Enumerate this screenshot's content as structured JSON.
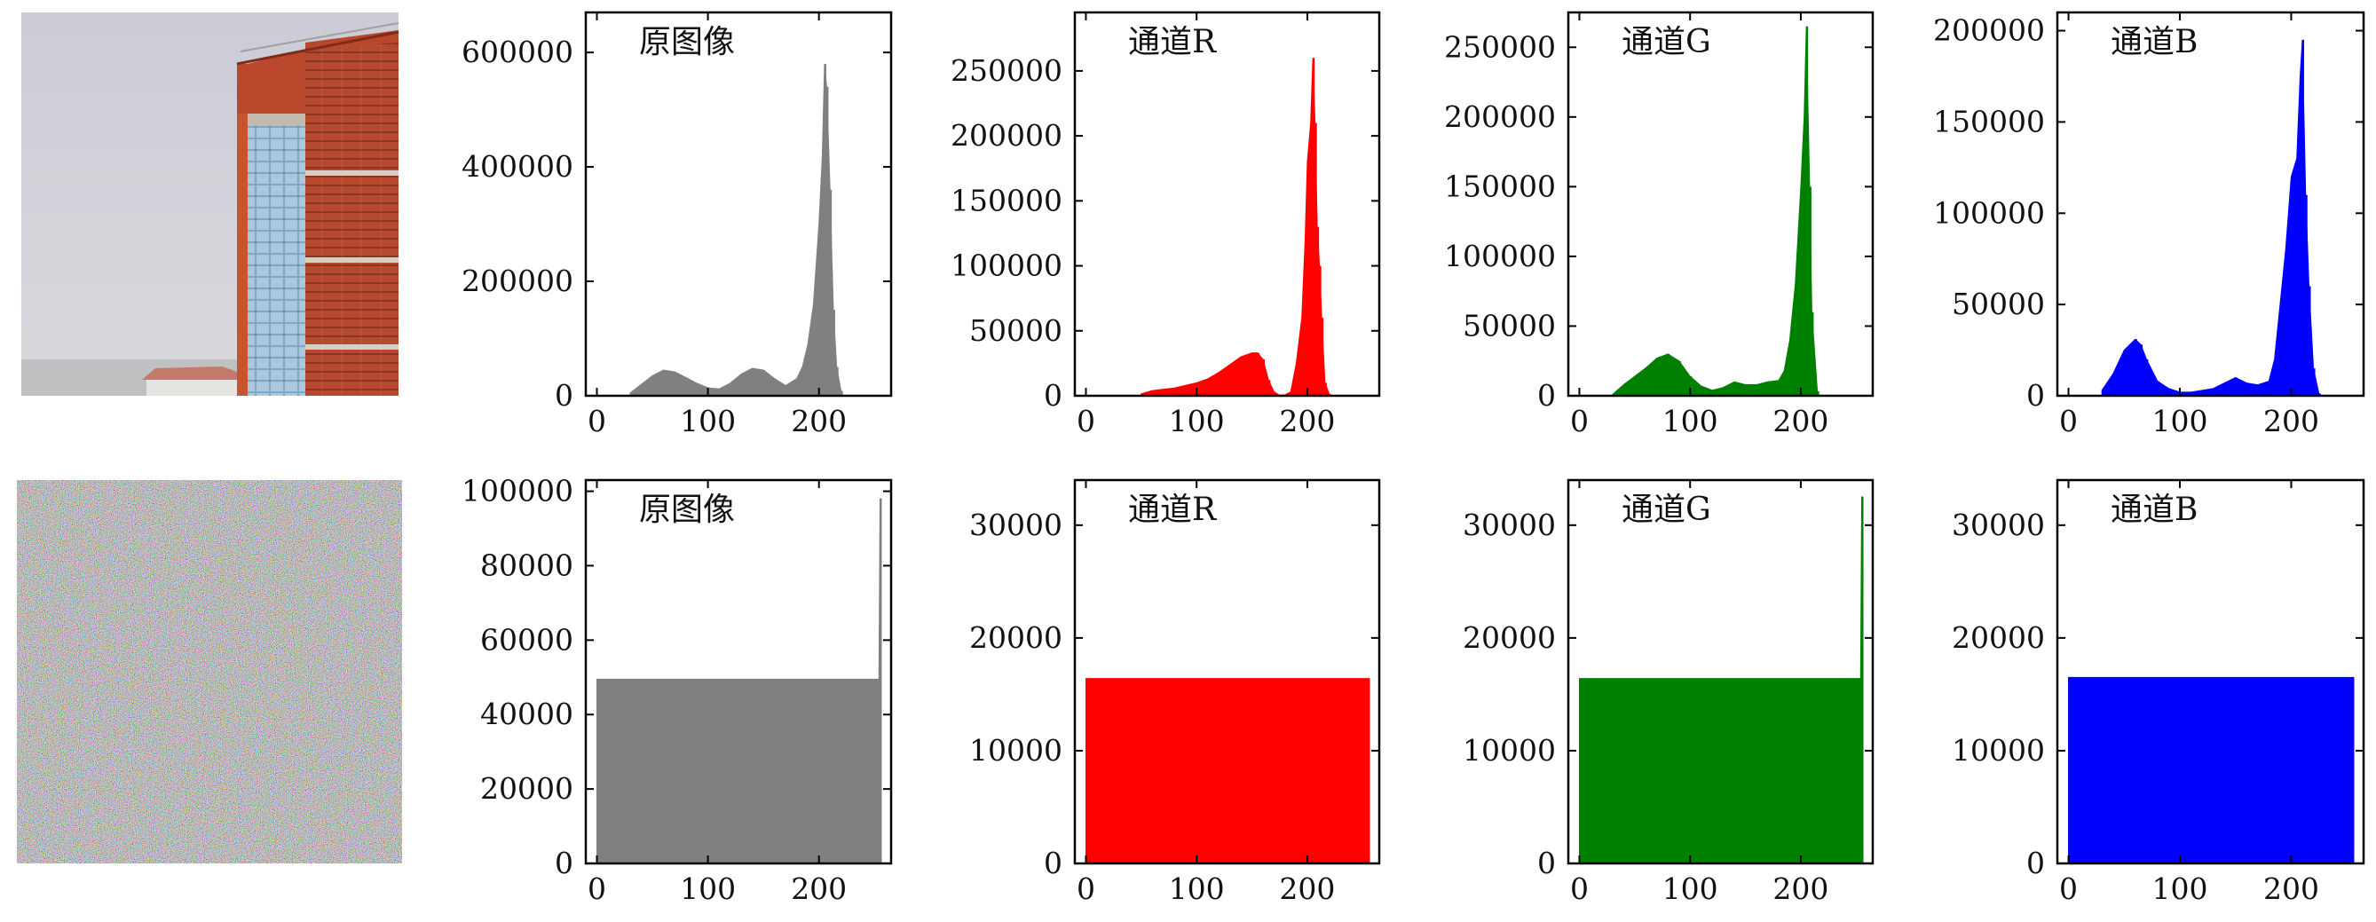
{
  "chart_data": [
    {
      "type": "bar",
      "row": 0,
      "col": 1,
      "title": "原图像",
      "color": "#808080",
      "xlim": [
        -10,
        265
      ],
      "ylim": [
        0,
        670000
      ],
      "xticks": [
        0,
        100,
        200
      ],
      "yticks": [
        0,
        200000,
        400000,
        600000
      ],
      "x": [
        30,
        40,
        50,
        60,
        70,
        80,
        90,
        100,
        110,
        120,
        130,
        140,
        150,
        160,
        170,
        180,
        185,
        190,
        195,
        200,
        203,
        205,
        207,
        210,
        213,
        216,
        220
      ],
      "values": [
        5000,
        20000,
        35000,
        45000,
        42000,
        32000,
        22000,
        14000,
        12000,
        22000,
        38000,
        48000,
        45000,
        30000,
        18000,
        30000,
        50000,
        90000,
        160000,
        300000,
        420000,
        580000,
        540000,
        360000,
        150000,
        50000,
        8000
      ]
    },
    {
      "type": "bar",
      "row": 0,
      "col": 2,
      "title": "通道R",
      "color": "#ff0000",
      "xlim": [
        -10,
        265
      ],
      "ylim": [
        0,
        295000
      ],
      "xticks": [
        0,
        100,
        200
      ],
      "yticks": [
        0,
        50000,
        100000,
        150000,
        200000,
        250000
      ],
      "x": [
        50,
        60,
        70,
        80,
        90,
        100,
        110,
        120,
        130,
        140,
        150,
        155,
        160,
        165,
        170,
        175,
        180,
        185,
        190,
        195,
        198,
        200,
        203,
        205,
        207,
        209,
        211,
        213,
        216,
        220
      ],
      "values": [
        1500,
        4000,
        5000,
        6000,
        8000,
        10000,
        13000,
        18000,
        24000,
        30000,
        33000,
        33000,
        28000,
        12000,
        3000,
        500,
        800,
        3000,
        25000,
        60000,
        120000,
        180000,
        210000,
        260000,
        210000,
        130000,
        100000,
        60000,
        10000,
        1000
      ]
    },
    {
      "type": "bar",
      "row": 0,
      "col": 3,
      "title": "通道G",
      "color": "#008000",
      "xlim": [
        -10,
        265
      ],
      "ylim": [
        0,
        275000
      ],
      "xticks": [
        0,
        100,
        200
      ],
      "yticks": [
        0,
        50000,
        100000,
        150000,
        200000,
        250000
      ],
      "x": [
        30,
        40,
        50,
        60,
        70,
        80,
        90,
        100,
        110,
        120,
        130,
        140,
        150,
        160,
        170,
        180,
        185,
        190,
        195,
        200,
        203,
        205,
        208,
        210,
        215
      ],
      "values": [
        1000,
        8000,
        14000,
        20000,
        27000,
        30000,
        25000,
        14000,
        7000,
        4000,
        6000,
        10000,
        8000,
        8000,
        10000,
        11000,
        18000,
        40000,
        80000,
        150000,
        200000,
        265000,
        150000,
        60000,
        3000
      ]
    },
    {
      "type": "bar",
      "row": 0,
      "col": 4,
      "title": "通道B",
      "color": "#0000ff",
      "xlim": [
        -10,
        265
      ],
      "ylim": [
        0,
        210000
      ],
      "xticks": [
        0,
        100,
        200
      ],
      "yticks": [
        0,
        50000,
        100000,
        150000,
        200000
      ],
      "x": [
        30,
        40,
        50,
        60,
        65,
        70,
        80,
        90,
        100,
        110,
        120,
        130,
        140,
        150,
        160,
        170,
        180,
        185,
        190,
        195,
        200,
        205,
        208,
        210,
        213,
        216,
        220,
        225
      ],
      "values": [
        3000,
        12000,
        25000,
        31000,
        28000,
        20000,
        8000,
        4000,
        2000,
        2000,
        3000,
        4000,
        7000,
        10000,
        7000,
        6000,
        8000,
        20000,
        50000,
        80000,
        120000,
        130000,
        175000,
        195000,
        110000,
        60000,
        15000,
        1000
      ]
    },
    {
      "type": "bar",
      "row": 1,
      "col": 1,
      "title": "原图像",
      "color": "#808080",
      "xlim": [
        -10,
        265
      ],
      "ylim": [
        0,
        103000
      ],
      "xticks": [
        0,
        100,
        200
      ],
      "yticks": [
        0,
        20000,
        40000,
        60000,
        80000,
        100000
      ],
      "x": [
        0,
        254,
        255
      ],
      "values": [
        49500,
        49500,
        98000
      ]
    },
    {
      "type": "bar",
      "row": 1,
      "col": 2,
      "title": "通道R",
      "color": "#ff0000",
      "xlim": [
        -10,
        265
      ],
      "ylim": [
        0,
        34000
      ],
      "xticks": [
        0,
        100,
        200
      ],
      "yticks": [
        0,
        10000,
        20000,
        30000
      ],
      "x": [
        0,
        255
      ],
      "values": [
        16400,
        16400
      ]
    },
    {
      "type": "bar",
      "row": 1,
      "col": 3,
      "title": "通道G",
      "color": "#008000",
      "xlim": [
        -10,
        265
      ],
      "ylim": [
        0,
        34000
      ],
      "xticks": [
        0,
        100,
        200
      ],
      "yticks": [
        0,
        10000,
        20000,
        30000
      ],
      "x": [
        0,
        254,
        255
      ],
      "values": [
        16400,
        16400,
        32500
      ]
    },
    {
      "type": "bar",
      "row": 1,
      "col": 4,
      "title": "通道B",
      "color": "#0000ff",
      "xlim": [
        -10,
        265
      ],
      "ylim": [
        0,
        34000
      ],
      "xticks": [
        0,
        100,
        200
      ],
      "yticks": [
        0,
        10000,
        20000,
        30000
      ],
      "x": [
        0,
        255
      ],
      "values": [
        16500,
        16500
      ]
    }
  ]
}
